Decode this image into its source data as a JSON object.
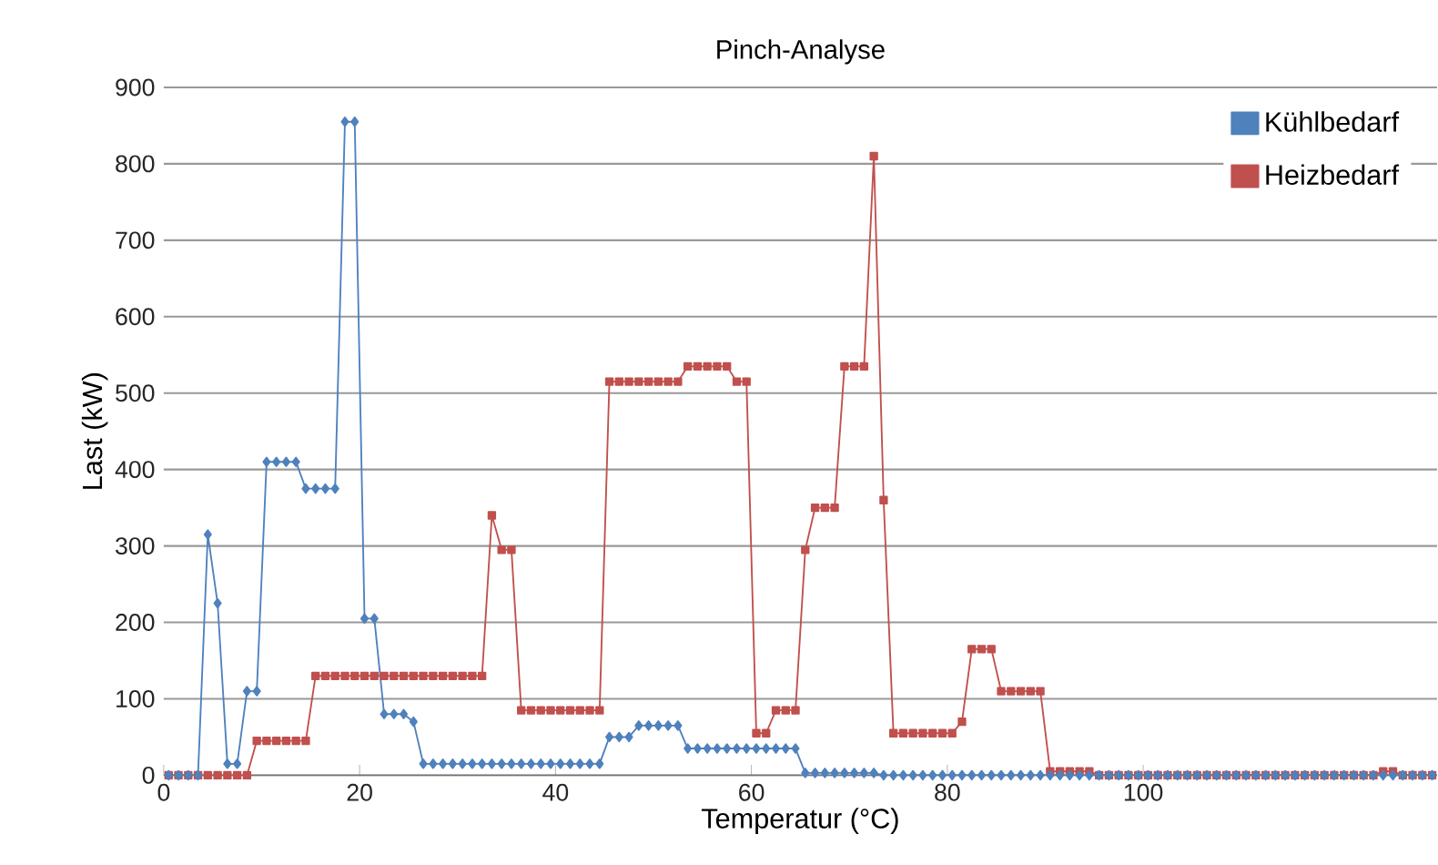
{
  "chart_data": {
    "type": "line",
    "title": "Pinch-Analyse",
    "xlabel": "Temperatur (°C)",
    "ylabel": "Last (kW)",
    "x": [
      0.5,
      1.5,
      2.5,
      3.5,
      4.5,
      5.5,
      6.5,
      7.5,
      8.5,
      9.5,
      10.5,
      11.5,
      12.5,
      13.5,
      14.5,
      15.5,
      16.5,
      17.5,
      18.5,
      19.5,
      20.5,
      21.5,
      22.5,
      23.5,
      24.5,
      25.5,
      26.5,
      27.5,
      28.5,
      29.5,
      30.5,
      31.5,
      32.5,
      33.5,
      34.5,
      35.5,
      36.5,
      37.5,
      38.5,
      39.5,
      40.5,
      41.5,
      42.5,
      43.5,
      44.5,
      45.5,
      46.5,
      47.5,
      48.5,
      49.5,
      50.5,
      51.5,
      52.5,
      53.5,
      54.5,
      55.5,
      56.5,
      57.5,
      58.5,
      59.5,
      60.5,
      61.5,
      62.5,
      63.5,
      64.5,
      65.5,
      66.5,
      67.5,
      68.5,
      69.5,
      70.5,
      71.5,
      72.5,
      73.5,
      74.5,
      75.5,
      76.5,
      77.5,
      78.5,
      79.5,
      80.5,
      81.5,
      82.5,
      83.5,
      84.5,
      85.5,
      86.5,
      87.5,
      88.5,
      89.5,
      90.5,
      91.5,
      92.5,
      93.5,
      94.5,
      95.5,
      96.5,
      97.5,
      98.5,
      99.5,
      100.5,
      101.5,
      102.5,
      103.5,
      104.5,
      105.5,
      106.5,
      107.5,
      108.5,
      109.5,
      110.5,
      111.5,
      112.5,
      113.5,
      114.5,
      115.5,
      116.5,
      117.5,
      118.5,
      119.5,
      120.5,
      121.5,
      122.5,
      123.5,
      124.5,
      125.5,
      126.5,
      127.5,
      128.5,
      129.5
    ],
    "series": [
      {
        "name": "Kühlbedarf",
        "color": "#4f81bd",
        "marker": "diamond",
        "values": [
          0,
          0,
          0,
          0,
          315,
          225,
          15,
          15,
          110,
          110,
          410,
          410,
          410,
          410,
          375,
          375,
          375,
          375,
          855,
          855,
          205,
          205,
          80,
          80,
          80,
          70,
          15,
          15,
          15,
          15,
          15,
          15,
          15,
          15,
          15,
          15,
          15,
          15,
          15,
          15,
          15,
          15,
          15,
          15,
          15,
          50,
          50,
          50,
          65,
          65,
          65,
          65,
          65,
          35,
          35,
          35,
          35,
          35,
          35,
          35,
          35,
          35,
          35,
          35,
          35,
          3,
          3,
          3,
          3,
          3,
          3,
          3,
          3,
          0,
          0,
          0,
          0,
          0,
          0,
          0,
          0,
          0,
          0,
          0,
          0,
          0,
          0,
          0,
          0,
          0,
          0,
          0,
          0,
          0,
          0,
          0,
          0,
          0,
          0,
          0,
          0,
          0,
          0,
          0,
          0,
          0,
          0,
          0,
          0,
          0,
          0,
          0,
          0,
          0,
          0,
          0,
          0,
          0,
          0,
          0,
          0,
          0,
          0,
          0,
          0,
          0,
          0,
          0,
          0,
          0
        ]
      },
      {
        "name": "Heizbedarf",
        "color": "#c0504d",
        "marker": "square",
        "values": [
          0,
          0,
          0,
          0,
          0,
          0,
          0,
          0,
          0,
          45,
          45,
          45,
          45,
          45,
          45,
          130,
          130,
          130,
          130,
          130,
          130,
          130,
          130,
          130,
          130,
          130,
          130,
          130,
          130,
          130,
          130,
          130,
          130,
          340,
          295,
          295,
          85,
          85,
          85,
          85,
          85,
          85,
          85,
          85,
          85,
          515,
          515,
          515,
          515,
          515,
          515,
          515,
          515,
          535,
          535,
          535,
          535,
          535,
          515,
          515,
          55,
          55,
          85,
          85,
          85,
          295,
          350,
          350,
          350,
          535,
          535,
          535,
          810,
          360,
          55,
          55,
          55,
          55,
          55,
          55,
          55,
          70,
          165,
          165,
          165,
          110,
          110,
          110,
          110,
          110,
          5,
          5,
          5,
          5,
          5,
          0,
          0,
          0,
          0,
          0,
          0,
          0,
          0,
          0,
          0,
          0,
          0,
          0,
          0,
          0,
          0,
          0,
          0,
          0,
          0,
          0,
          0,
          0,
          0,
          0,
          0,
          0,
          0,
          0,
          5,
          5,
          0,
          0,
          0,
          0
        ]
      }
    ],
    "xlim": [
      0,
      130
    ],
    "xticks": [
      0,
      20,
      40,
      60,
      80,
      100
    ],
    "ylim": [
      0,
      900
    ],
    "yticks": [
      0,
      100,
      200,
      300,
      400,
      500,
      600,
      700,
      800,
      900
    ],
    "grid": "y",
    "legend": "top right"
  }
}
